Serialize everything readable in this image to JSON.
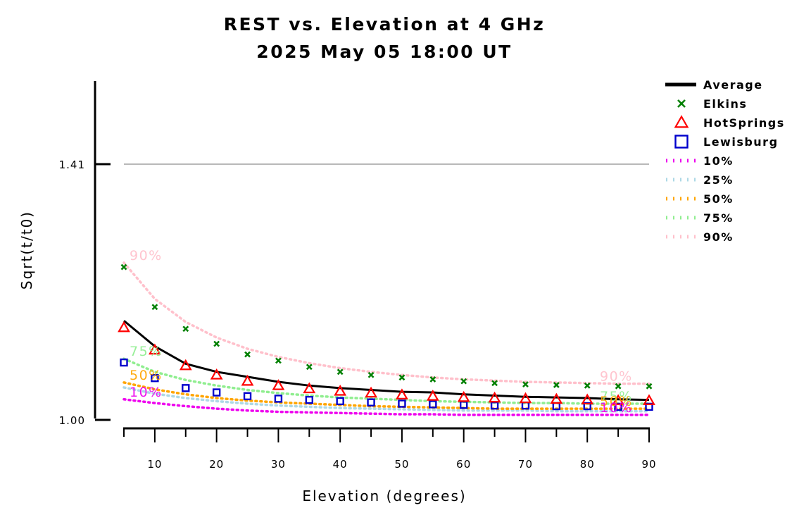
{
  "chart_data": {
    "type": "line",
    "title": "REST vs. Elevation at 4 GHz",
    "subtitle": "2025 May 05 18:00 UT",
    "xlabel": "Elevation (degrees)",
    "ylabel": "Sqrt(t/t0)",
    "xlim": [
      5,
      90
    ],
    "ylim": [
      1.0,
      1.54
    ],
    "x_ticks": [
      10,
      20,
      30,
      40,
      50,
      60,
      70,
      80,
      90
    ],
    "y_ticks": [
      1.0,
      1.41
    ],
    "y_tick_labels": [
      "1.00",
      "1.41"
    ],
    "reference_line": 1.41,
    "legend_position": "right",
    "x": [
      5,
      10,
      15,
      20,
      25,
      30,
      35,
      40,
      45,
      50,
      55,
      60,
      65,
      70,
      75,
      80,
      85,
      90
    ],
    "series": [
      {
        "name": "Average",
        "style": "line",
        "color": "#000000",
        "values": [
          1.159,
          1.118,
          1.09,
          1.077,
          1.069,
          1.061,
          1.055,
          1.051,
          1.048,
          1.045,
          1.044,
          1.041,
          1.039,
          1.037,
          1.036,
          1.035,
          1.033,
          1.032
        ]
      },
      {
        "name": "Elkins",
        "style": "x",
        "color": "#008000",
        "values": [
          1.245,
          1.181,
          1.146,
          1.122,
          1.105,
          1.095,
          1.085,
          1.077,
          1.072,
          1.068,
          1.065,
          1.062,
          1.059,
          1.057,
          1.056,
          1.055,
          1.054,
          1.054
        ]
      },
      {
        "name": "HotSprings",
        "style": "triangle",
        "color": "#ff0000",
        "values": [
          1.148,
          1.112,
          1.087,
          1.072,
          1.062,
          1.055,
          1.05,
          1.046,
          1.043,
          1.04,
          1.038,
          1.036,
          1.035,
          1.034,
          1.033,
          1.032,
          1.031,
          1.031
        ]
      },
      {
        "name": "Lewisburg",
        "style": "square",
        "color": "#0000cc",
        "values": [
          1.092,
          1.067,
          1.051,
          1.044,
          1.038,
          1.034,
          1.032,
          1.03,
          1.028,
          1.026,
          1.025,
          1.024,
          1.023,
          1.023,
          1.022,
          1.022,
          1.021,
          1.021
        ]
      },
      {
        "name": "10%",
        "style": "dotted",
        "color": "#ee00ee",
        "values": [
          1.033,
          1.027,
          1.022,
          1.018,
          1.015,
          1.013,
          1.012,
          1.011,
          1.01,
          1.009,
          1.009,
          1.008,
          1.008,
          1.008,
          1.008,
          1.008,
          1.008,
          1.008
        ]
      },
      {
        "name": "25%",
        "style": "dotted",
        "color": "#add8e6",
        "values": [
          1.052,
          1.042,
          1.035,
          1.03,
          1.026,
          1.023,
          1.021,
          1.019,
          1.018,
          1.017,
          1.016,
          1.015,
          1.015,
          1.015,
          1.014,
          1.014,
          1.014,
          1.014
        ]
      },
      {
        "name": "50%",
        "style": "dotted",
        "color": "#ffa500",
        "values": [
          1.06,
          1.049,
          1.041,
          1.035,
          1.031,
          1.028,
          1.026,
          1.024,
          1.022,
          1.021,
          1.02,
          1.019,
          1.018,
          1.018,
          1.018,
          1.018,
          1.018,
          1.018
        ]
      },
      {
        "name": "75%",
        "style": "dotted",
        "color": "#90ee90",
        "values": [
          1.098,
          1.077,
          1.064,
          1.055,
          1.048,
          1.043,
          1.039,
          1.036,
          1.034,
          1.032,
          1.03,
          1.029,
          1.028,
          1.027,
          1.027,
          1.026,
          1.026,
          1.026
        ]
      },
      {
        "name": "90%",
        "style": "dotted",
        "color": "#ffc0cb",
        "values": [
          1.252,
          1.194,
          1.157,
          1.132,
          1.114,
          1.101,
          1.091,
          1.083,
          1.077,
          1.072,
          1.068,
          1.065,
          1.063,
          1.061,
          1.06,
          1.059,
          1.058,
          1.058
        ]
      }
    ],
    "curve_labels": [
      {
        "text": "90%",
        "series": "90%"
      },
      {
        "text": "75%",
        "series": "75%"
      },
      {
        "text": "50%",
        "series": "50%"
      },
      {
        "text": "10%",
        "series": "10%"
      },
      {
        "text": "90%",
        "series": "90%"
      },
      {
        "text": "75%",
        "series": "75%"
      },
      {
        "text": "50%",
        "series": "50%"
      },
      {
        "text": "10%",
        "series": "10%"
      }
    ]
  }
}
